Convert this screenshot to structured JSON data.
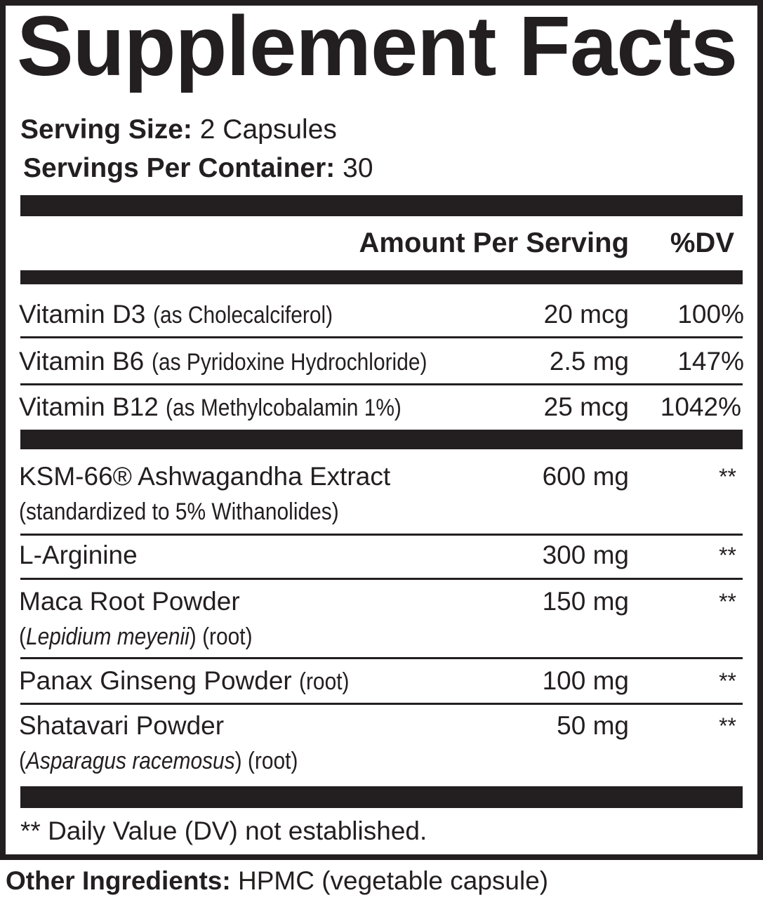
{
  "title": "Supplement Facts",
  "serving_size": {
    "label": "Serving Size:",
    "value": "2 Capsules"
  },
  "servings_per_container": {
    "label": "Servings Per Container:",
    "value": "30"
  },
  "header": {
    "amount": "Amount Per Serving",
    "dv": "%DV"
  },
  "vitamins": [
    {
      "name": "Vitamin D3",
      "detail": "(as Cholecalciferol)",
      "amount": "20 mcg",
      "dv": "100%"
    },
    {
      "name": "Vitamin B6",
      "detail": "(as Pyridoxine Hydrochloride)",
      "amount": "2.5 mg",
      "dv": "147%"
    },
    {
      "name": "Vitamin B12",
      "detail": "(as Methylcobalamin 1%)",
      "amount": "25 mcg",
      "dv": "1042%"
    }
  ],
  "ingredients": [
    {
      "name": "KSM-66® Ashwagandha Extract",
      "sub": "(standardized to 5% Withanolides)",
      "amount": "600 mg",
      "dv": "**"
    },
    {
      "name": "L-Arginine",
      "amount": "300 mg",
      "dv": "**"
    },
    {
      "name": "Maca Root Powder",
      "sub_open": "(",
      "sub_italic": "Lepidium meyenii",
      "sub_close": ") (root)",
      "amount": "150 mg",
      "dv": "**"
    },
    {
      "name": "Panax Ginseng Powder",
      "detail": "(root)",
      "amount": "100 mg",
      "dv": "**"
    },
    {
      "name": "Shatavari Powder",
      "sub_open": "(",
      "sub_italic": "Asparagus racemosus",
      "sub_close": ") (root)",
      "amount": "50 mg",
      "dv": "**"
    }
  ],
  "footnote": "** Daily Value (DV) not established.",
  "other_ingredients": {
    "label": "Other Ingredients:",
    "value": "HPMC (vegetable capsule)"
  },
  "colors": {
    "ink": "#231f20",
    "background": "#ffffff"
  }
}
